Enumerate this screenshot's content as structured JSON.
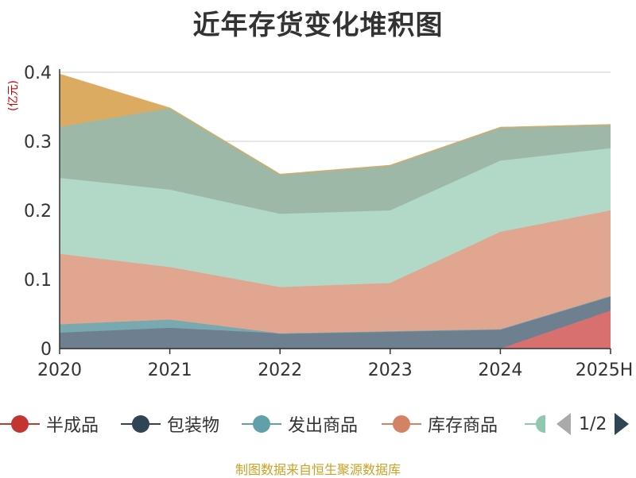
{
  "chart_data": {
    "type": "area",
    "stacked": true,
    "title": "近年存货变化堆积图",
    "ylabel": "(亿元)",
    "xlabel": "",
    "categories": [
      "2020",
      "2021",
      "2022",
      "2023",
      "2024",
      "2025H"
    ],
    "ylim": [
      0,
      0.4
    ],
    "yticks": [
      "0",
      "0.1",
      "0.2",
      "0.3",
      "0.4"
    ],
    "yticks_values": [
      0,
      0.1,
      0.2,
      0.3,
      0.4
    ],
    "grid": true,
    "legend_position": "bottom",
    "series": [
      {
        "name": "半成品",
        "values": [
          0.0,
          0.0,
          0.0,
          0.0,
          0.0,
          0.055
        ],
        "color": "#d7706f"
      },
      {
        "name": "包装物",
        "values": [
          0.023,
          0.03,
          0.022,
          0.025,
          0.028,
          0.021
        ],
        "color": "#6e7f8f"
      },
      {
        "name": "发出商品",
        "values": [
          0.012,
          0.012,
          0.0,
          0.0,
          0.0,
          0.0
        ],
        "color": "#78a8b0"
      },
      {
        "name": "库存商品",
        "values": [
          0.102,
          0.076,
          0.067,
          0.07,
          0.141,
          0.124
        ],
        "color": "#e0a68f"
      },
      {
        "name": "",
        "values": [
          0.11,
          0.112,
          0.106,
          0.105,
          0.103,
          0.09
        ],
        "color": "#b2d8c7"
      },
      {
        "name": "",
        "values": [
          0.074,
          0.118,
          0.057,
          0.065,
          0.048,
          0.034
        ],
        "color": "#9db8a6"
      },
      {
        "name": "",
        "values": [
          0.076,
          0.0,
          0.0,
          0.0,
          0.0,
          0.0
        ],
        "color": "#dcab62"
      }
    ]
  },
  "legend": {
    "items": [
      {
        "label": "半成品",
        "color": "#c23531"
      },
      {
        "label": "包装物",
        "color": "#2f4554"
      },
      {
        "label": "发出商品",
        "color": "#61a0a8"
      },
      {
        "label": "库存商品",
        "color": "#d48265"
      },
      {
        "label": "",
        "color": "#91c7ae"
      }
    ],
    "page": "1/2"
  },
  "source": "制图数据来自恒生聚源数据库"
}
